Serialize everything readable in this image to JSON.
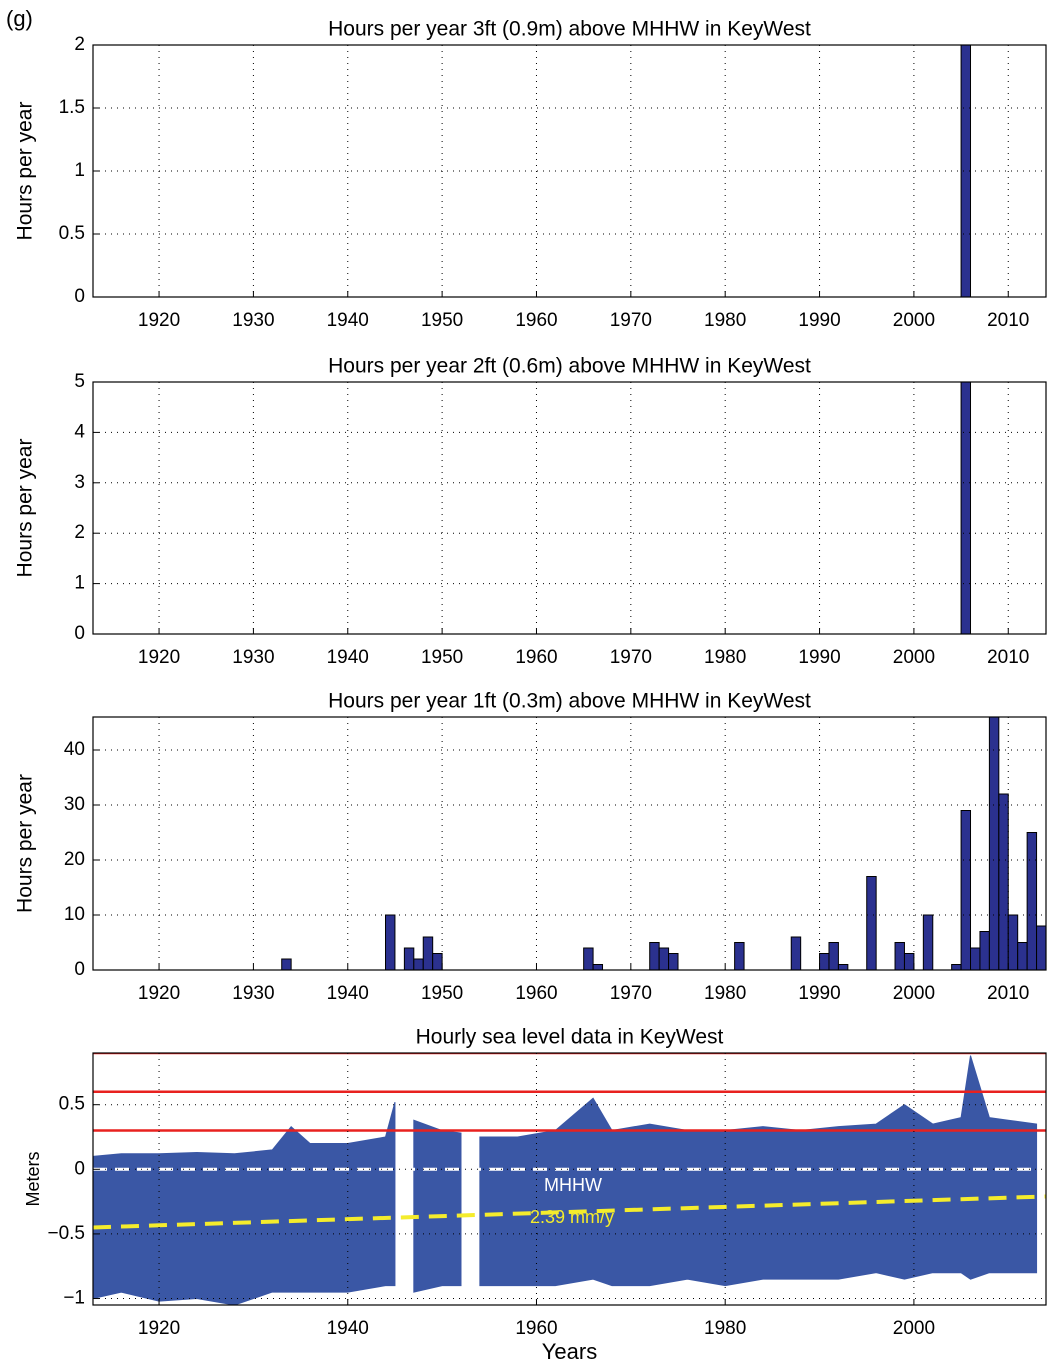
{
  "panel_label": "(g)",
  "chart_data": [
    {
      "type": "bar",
      "title": "Hours per year 3ft (0.9m) above MHHW in KeyWest",
      "y_label": "Hours per year",
      "x": [
        2005
      ],
      "values": [
        2
      ],
      "color": "#2b318f",
      "xlim": [
        1913,
        2014
      ],
      "xticks": [
        1920,
        1930,
        1940,
        1950,
        1960,
        1970,
        1980,
        1990,
        2000,
        2010
      ],
      "ylim": [
        0,
        2
      ],
      "yticks": [
        0,
        0.5,
        1,
        1.5,
        2
      ],
      "grid": true
    },
    {
      "type": "bar",
      "title": "Hours per year 2ft (0.6m) above MHHW in KeyWest",
      "y_label": "Hours per year",
      "x": [
        2005
      ],
      "values": [
        5
      ],
      "color": "#2b318f",
      "xlim": [
        1913,
        2014
      ],
      "xticks": [
        1920,
        1930,
        1940,
        1950,
        1960,
        1970,
        1980,
        1990,
        2000,
        2010
      ],
      "ylim": [
        0,
        5
      ],
      "yticks": [
        0,
        1,
        2,
        3,
        4,
        5
      ],
      "grid": true
    },
    {
      "type": "bar",
      "title": "Hours per year 1ft (0.3m) above MHHW in KeyWest",
      "y_label": "Hours per year",
      "x": [
        1933,
        1944,
        1946,
        1947,
        1948,
        1949,
        1965,
        1966,
        1972,
        1973,
        1974,
        1981,
        1987,
        1990,
        1991,
        1992,
        1995,
        1998,
        1999,
        2001,
        2004,
        2005,
        2006,
        2007,
        2008,
        2009,
        2010,
        2011,
        2012,
        2013
      ],
      "values": [
        2,
        10,
        4,
        2,
        6,
        3,
        4,
        1,
        5,
        4,
        3,
        5,
        6,
        3,
        5,
        1,
        17,
        5,
        3,
        10,
        1,
        29,
        4,
        7,
        46,
        32,
        10,
        5,
        25,
        8
      ],
      "color": "#2b318f",
      "xlim": [
        1913,
        2014
      ],
      "xticks": [
        1920,
        1930,
        1940,
        1950,
        1960,
        1970,
        1980,
        1990,
        2000,
        2010
      ],
      "ylim": [
        0,
        46
      ],
      "yticks": [
        0,
        10,
        20,
        30,
        40
      ],
      "grid": true
    },
    {
      "type": "range",
      "title": "Hourly sea level data in KeyWest",
      "y_label": "Meters",
      "x_label": "Years",
      "x": [
        1913,
        1916,
        1920,
        1924,
        1928,
        1932,
        1934,
        1936,
        1940,
        1944,
        1945,
        1946,
        1947,
        1950,
        1952,
        1953,
        1954,
        1958,
        1962,
        1966,
        1968,
        1972,
        1976,
        1980,
        1984,
        1988,
        1992,
        1996,
        1999,
        2002,
        2005,
        2006,
        2008,
        2010,
        2013
      ],
      "high": [
        0.1,
        0.12,
        0.12,
        0.13,
        0.12,
        0.15,
        0.33,
        0.2,
        0.2,
        0.25,
        0.52,
        null,
        0.38,
        0.3,
        0.28,
        null,
        0.25,
        0.25,
        0.3,
        0.55,
        0.3,
        0.35,
        0.3,
        0.3,
        0.33,
        0.3,
        0.33,
        0.35,
        0.5,
        0.35,
        0.4,
        0.88,
        0.4,
        0.38,
        0.35
      ],
      "low": [
        -1.0,
        -0.95,
        -1.02,
        -1.0,
        -1.05,
        -0.95,
        -0.95,
        -0.95,
        -0.95,
        -0.9,
        -0.9,
        null,
        -0.95,
        -0.9,
        -0.9,
        null,
        -0.9,
        -0.9,
        -0.9,
        -0.85,
        -0.9,
        -0.9,
        -0.85,
        -0.9,
        -0.85,
        -0.85,
        -0.85,
        -0.8,
        -0.85,
        -0.8,
        -0.8,
        -0.85,
        -0.8,
        -0.8,
        -0.8
      ],
      "color": "#3a57a5",
      "reference_lines": [
        0.3,
        0.6,
        0.9
      ],
      "reference_color": "#e8211f",
      "mhhw": {
        "value": 0,
        "label": "MHHW",
        "color": "#ffffff"
      },
      "trend": {
        "x": [
          1913,
          2014
        ],
        "y": [
          -0.45,
          -0.21
        ],
        "label": "2.39 mm/y",
        "color": "#f4ec2c"
      },
      "xlim": [
        1913,
        2014
      ],
      "xticks": [
        1920,
        1940,
        1960,
        1980,
        2000
      ],
      "ylim": [
        -1.05,
        0.9
      ],
      "yticks": [
        {
          "value": -1,
          "label": "−1"
        },
        {
          "value": -0.5,
          "label": "−0.5"
        },
        0,
        0.5
      ],
      "grid": true
    }
  ]
}
